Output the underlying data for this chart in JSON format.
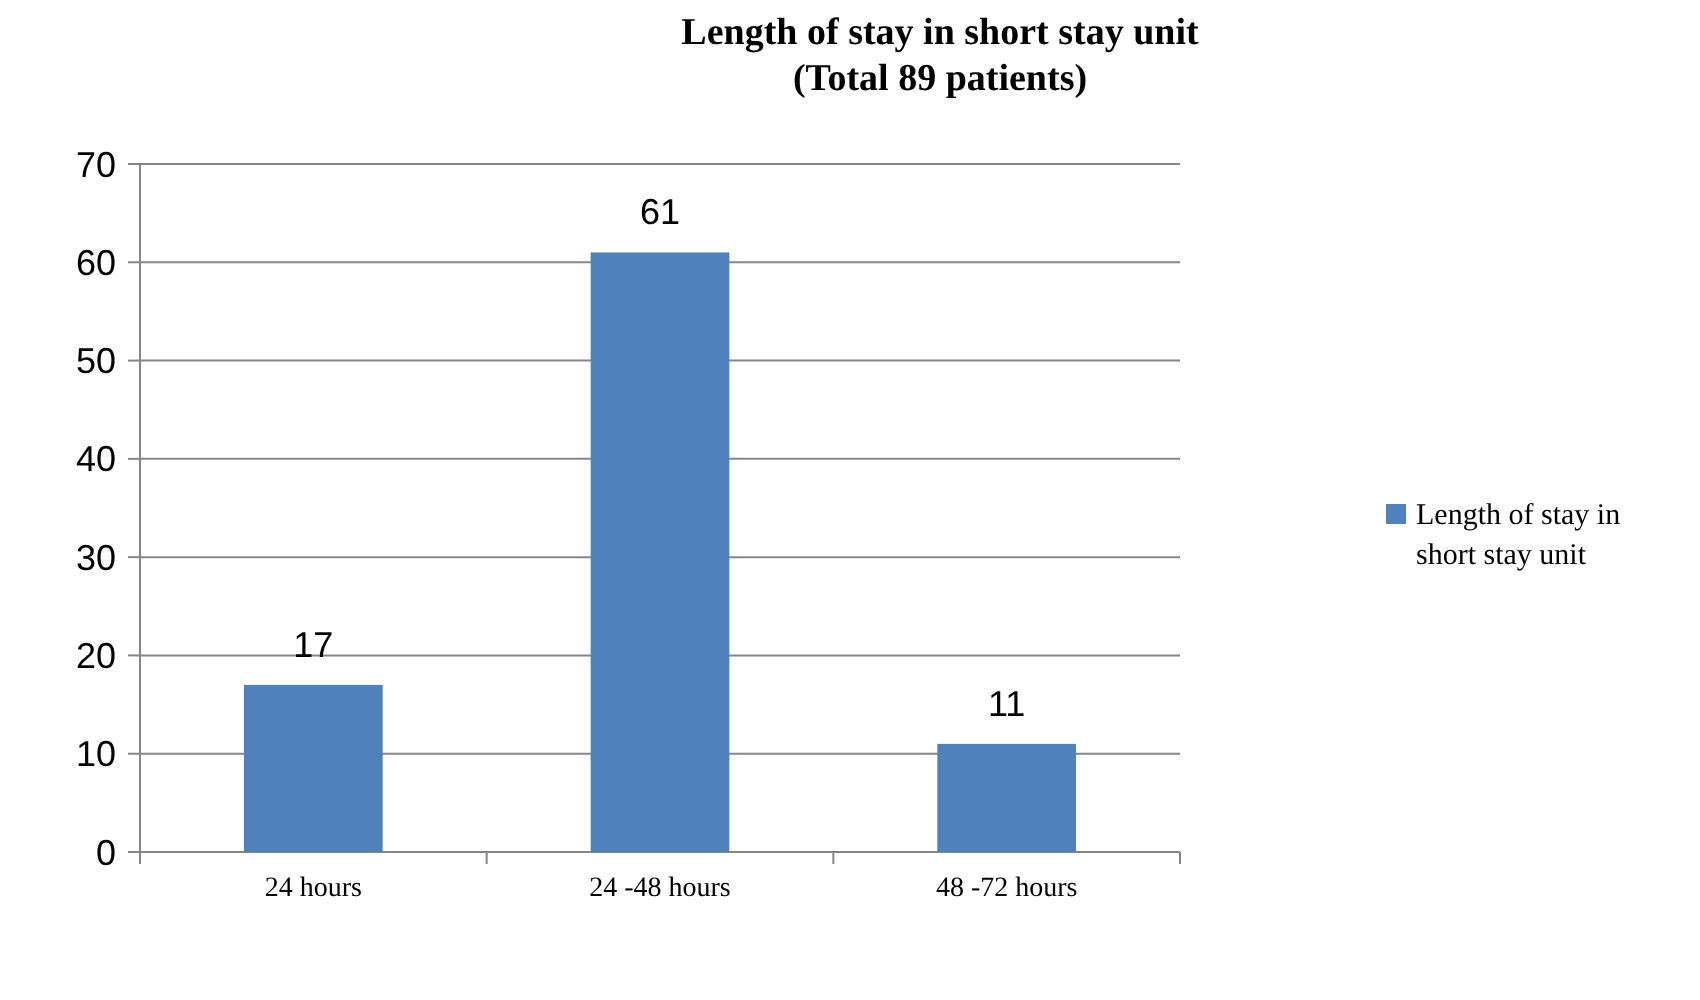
{
  "chart_data": {
    "type": "bar",
    "title": "Length of stay in short stay unit",
    "subtitle": "(Total 89 patients)",
    "categories": [
      "24 hours",
      "24 -48 hours",
      "48 -72 hours"
    ],
    "series": [
      {
        "name": "Length of stay in short stay unit",
        "color": "#4f81bd",
        "values": [
          17,
          61,
          11
        ]
      }
    ],
    "ylim": [
      0,
      70
    ],
    "yticks": [
      0,
      10,
      20,
      30,
      40,
      50,
      60,
      70
    ],
    "grid": "y",
    "legend": "right",
    "data_labels": true
  }
}
